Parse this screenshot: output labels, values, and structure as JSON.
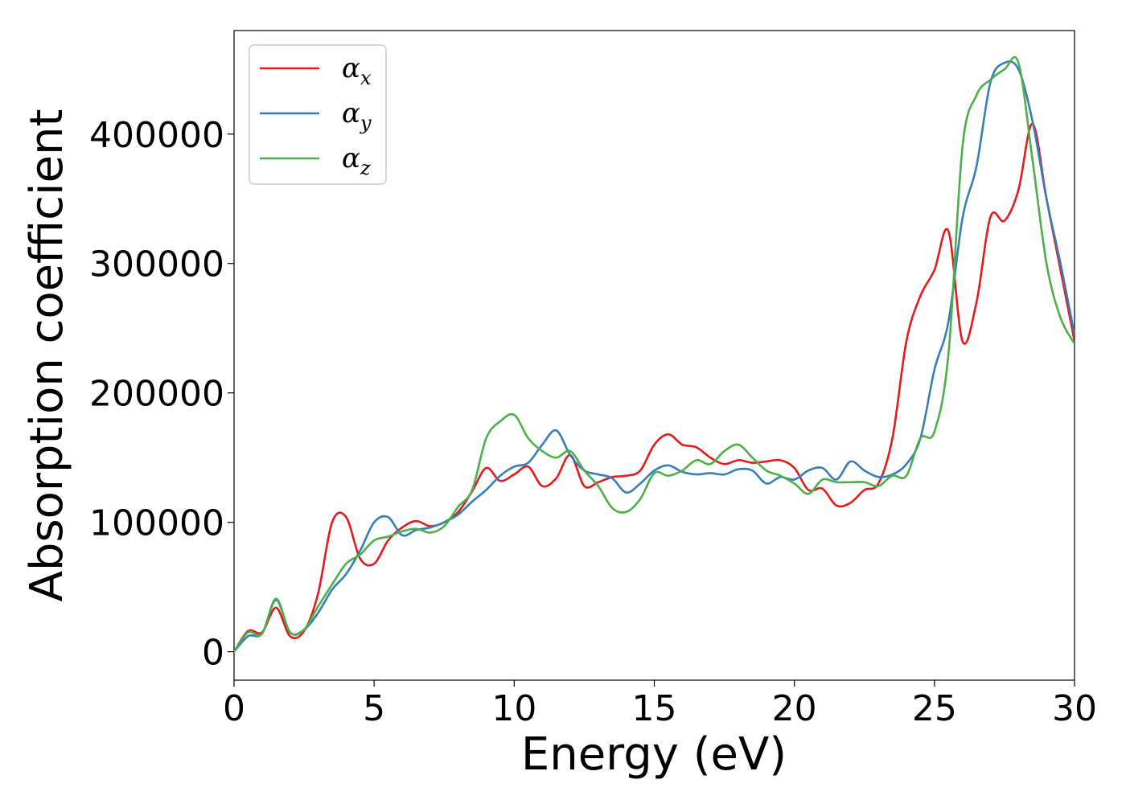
{
  "chart_data": {
    "type": "line",
    "xlabel": "Energy (eV)",
    "ylabel": "Absorption coefficient",
    "xlim": [
      0,
      30
    ],
    "ylim": [
      -22000,
      480000
    ],
    "xticks": [
      0,
      5,
      10,
      15,
      20,
      25,
      30
    ],
    "yticks": [
      0,
      100000,
      200000,
      300000,
      400000
    ],
    "grid": false,
    "legend_position": "upper-left",
    "x": [
      0,
      0.5,
      1,
      1.5,
      2,
      2.5,
      3,
      3.5,
      4,
      4.5,
      5,
      5.5,
      6,
      6.5,
      7,
      7.5,
      8,
      8.5,
      9,
      9.5,
      10,
      10.5,
      11,
      11.5,
      12,
      12.5,
      13,
      13.5,
      14,
      14.5,
      15,
      15.5,
      16,
      16.5,
      17,
      17.5,
      18,
      18.5,
      19,
      19.5,
      20,
      20.5,
      21,
      21.5,
      22,
      22.5,
      23,
      23.5,
      24,
      24.5,
      25,
      25.5,
      26,
      26.5,
      27,
      27.5,
      28,
      28.5,
      29,
      29.5,
      30
    ],
    "series": [
      {
        "name": "α",
        "subscript": "x",
        "color": "#e41a1c",
        "values": [
          0,
          16000,
          15000,
          34000,
          12000,
          16000,
          45000,
          100000,
          104000,
          72000,
          68000,
          86000,
          96000,
          101000,
          97000,
          100000,
          108000,
          124000,
          142000,
          132000,
          137000,
          143000,
          128000,
          134000,
          152000,
          128000,
          131000,
          135000,
          136000,
          140000,
          160000,
          168000,
          160000,
          158000,
          150000,
          145000,
          148000,
          146000,
          147000,
          148000,
          142000,
          125000,
          126000,
          113000,
          115000,
          125000,
          130000,
          165000,
          240000,
          275000,
          295000,
          325000,
          240000,
          270000,
          336000,
          333000,
          357000,
          408000,
          350000,
          295000,
          240000
        ]
      },
      {
        "name": "α",
        "subscript": "y",
        "color": "#377eb8",
        "values": [
          0,
          12000,
          14000,
          40000,
          15000,
          17000,
          30000,
          48000,
          60000,
          78000,
          100000,
          104000,
          90000,
          94000,
          96000,
          100000,
          106000,
          116000,
          125000,
          136000,
          143000,
          146000,
          160000,
          171000,
          152000,
          140000,
          137000,
          134000,
          123000,
          130000,
          140000,
          144000,
          139000,
          137000,
          138000,
          137000,
          141000,
          140000,
          130000,
          135000,
          133000,
          140000,
          142000,
          133000,
          147000,
          140000,
          135000,
          137000,
          145000,
          165000,
          218000,
          255000,
          335000,
          375000,
          440000,
          455000,
          450000,
          410000,
          350000,
          300000,
          245000
        ]
      },
      {
        "name": "α",
        "subscript": "z",
        "color": "#4daf4a",
        "values": [
          0,
          15000,
          14000,
          41000,
          15000,
          17000,
          35000,
          52000,
          68000,
          75000,
          86000,
          89000,
          93000,
          95000,
          92000,
          97000,
          112000,
          125000,
          165000,
          178000,
          183000,
          165000,
          155000,
          150000,
          155000,
          140000,
          128000,
          111000,
          108000,
          118000,
          138000,
          136000,
          140000,
          148000,
          145000,
          155000,
          160000,
          150000,
          140000,
          136000,
          130000,
          122000,
          133000,
          131000,
          131000,
          131000,
          128000,
          136000,
          136000,
          165000,
          170000,
          230000,
          390000,
          430000,
          442000,
          450000,
          455000,
          380000,
          300000,
          258000,
          238000
        ]
      }
    ]
  }
}
